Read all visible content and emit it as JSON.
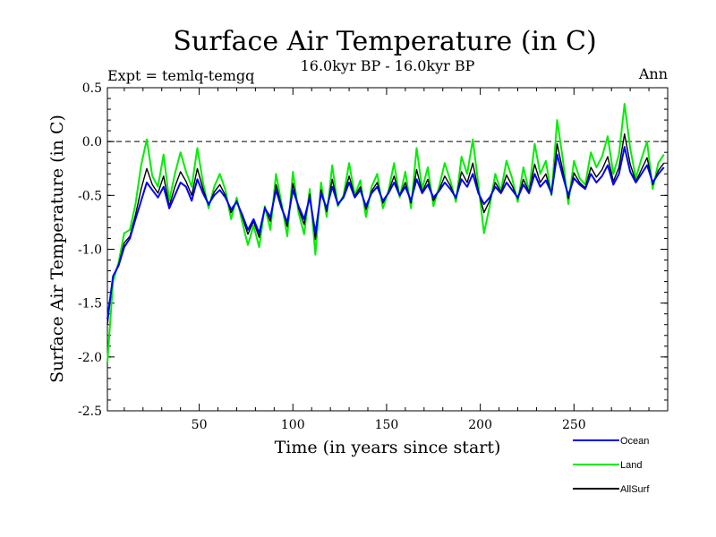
{
  "chart_data": {
    "type": "line",
    "title": "Surface Air Temperature (in C)",
    "subtitle": "16.0kyr BP - 16.0kyr BP",
    "experiment_label": "Expt = temlq-temgq",
    "season_label": "Ann",
    "xlabel": "Time (in years since start)",
    "ylabel": "Surface Air Temperature (in C)",
    "xlim": [
      1,
      300
    ],
    "ylim": [
      -2.5,
      0.5
    ],
    "x_ticks": [
      50,
      100,
      150,
      200,
      250
    ],
    "x_tick_labels": [
      "50",
      "100",
      "150",
      "200",
      "250"
    ],
    "y_ticks": [
      -2.5,
      -2.0,
      -1.5,
      -1.0,
      -0.5,
      0.0,
      0.5
    ],
    "y_tick_labels": [
      "-2.5",
      "-2.0",
      "-1.5",
      "-1.0",
      "-0.5",
      "0.0",
      "0.5"
    ],
    "reference_line": 0.0,
    "grid": false,
    "legend_position": "bottom-right, outside plot",
    "x": [
      1,
      4,
      7,
      10,
      13,
      16,
      19,
      22,
      25,
      28,
      31,
      34,
      37,
      40,
      43,
      46,
      49,
      52,
      55,
      58,
      61,
      64,
      67,
      70,
      73,
      76,
      79,
      82,
      85,
      88,
      91,
      94,
      97,
      100,
      103,
      106,
      109,
      112,
      115,
      118,
      121,
      124,
      127,
      130,
      133,
      136,
      139,
      142,
      145,
      148,
      151,
      154,
      157,
      160,
      163,
      166,
      169,
      172,
      175,
      178,
      181,
      184,
      187,
      190,
      193,
      196,
      199,
      202,
      205,
      208,
      211,
      214,
      217,
      220,
      223,
      226,
      229,
      232,
      235,
      238,
      241,
      244,
      247,
      250,
      253,
      256,
      259,
      262,
      265,
      268,
      271,
      274,
      277,
      280,
      283,
      286,
      289,
      292,
      295,
      298
    ],
    "series": [
      {
        "name": "Ocean",
        "color": "#0000ff",
        "values": [
          -1.65,
          -1.25,
          -1.15,
          -0.98,
          -0.9,
          -0.72,
          -0.55,
          -0.38,
          -0.45,
          -0.52,
          -0.42,
          -0.62,
          -0.5,
          -0.38,
          -0.42,
          -0.55,
          -0.35,
          -0.48,
          -0.58,
          -0.5,
          -0.45,
          -0.52,
          -0.63,
          -0.56,
          -0.68,
          -0.82,
          -0.72,
          -0.85,
          -0.62,
          -0.7,
          -0.45,
          -0.62,
          -0.75,
          -0.45,
          -0.6,
          -0.72,
          -0.52,
          -0.85,
          -0.48,
          -0.62,
          -0.42,
          -0.58,
          -0.52,
          -0.38,
          -0.52,
          -0.45,
          -0.6,
          -0.48,
          -0.42,
          -0.55,
          -0.48,
          -0.38,
          -0.5,
          -0.42,
          -0.55,
          -0.35,
          -0.48,
          -0.4,
          -0.52,
          -0.46,
          -0.38,
          -0.44,
          -0.52,
          -0.35,
          -0.42,
          -0.3,
          -0.48,
          -0.58,
          -0.52,
          -0.42,
          -0.48,
          -0.38,
          -0.45,
          -0.52,
          -0.4,
          -0.48,
          -0.3,
          -0.42,
          -0.36,
          -0.48,
          -0.12,
          -0.32,
          -0.5,
          -0.34,
          -0.4,
          -0.44,
          -0.3,
          -0.38,
          -0.32,
          -0.22,
          -0.4,
          -0.3,
          -0.05,
          -0.28,
          -0.38,
          -0.3,
          -0.22,
          -0.38,
          -0.3,
          -0.24
        ]
      },
      {
        "name": "Land",
        "color": "#00ee00",
        "values": [
          -2.05,
          -1.3,
          -1.12,
          -0.85,
          -0.82,
          -0.58,
          -0.22,
          0.02,
          -0.32,
          -0.42,
          -0.12,
          -0.55,
          -0.3,
          -0.1,
          -0.28,
          -0.42,
          -0.06,
          -0.38,
          -0.62,
          -0.42,
          -0.3,
          -0.45,
          -0.72,
          -0.52,
          -0.75,
          -0.96,
          -0.78,
          -0.98,
          -0.6,
          -0.82,
          -0.3,
          -0.58,
          -0.88,
          -0.28,
          -0.66,
          -0.86,
          -0.44,
          -1.05,
          -0.38,
          -0.7,
          -0.22,
          -0.6,
          -0.5,
          -0.2,
          -0.5,
          -0.36,
          -0.7,
          -0.42,
          -0.3,
          -0.62,
          -0.46,
          -0.2,
          -0.52,
          -0.28,
          -0.62,
          -0.06,
          -0.44,
          -0.24,
          -0.6,
          -0.42,
          -0.2,
          -0.36,
          -0.56,
          -0.14,
          -0.3,
          0.02,
          -0.4,
          -0.85,
          -0.6,
          -0.3,
          -0.46,
          -0.18,
          -0.34,
          -0.56,
          -0.24,
          -0.46,
          -0.02,
          -0.3,
          -0.18,
          -0.5,
          0.2,
          -0.16,
          -0.58,
          -0.18,
          -0.34,
          -0.4,
          -0.1,
          -0.24,
          -0.14,
          0.05,
          -0.3,
          -0.12,
          0.35,
          -0.06,
          -0.34,
          -0.16,
          0.0,
          -0.44,
          -0.2,
          -0.12
        ]
      },
      {
        "name": "AllSurf",
        "color": "#000000",
        "values": [
          -1.7,
          -1.25,
          -1.14,
          -0.94,
          -0.88,
          -0.68,
          -0.44,
          -0.25,
          -0.4,
          -0.48,
          -0.32,
          -0.6,
          -0.42,
          -0.28,
          -0.37,
          -0.5,
          -0.25,
          -0.44,
          -0.59,
          -0.47,
          -0.4,
          -0.5,
          -0.66,
          -0.55,
          -0.7,
          -0.86,
          -0.74,
          -0.89,
          -0.61,
          -0.74,
          -0.4,
          -0.6,
          -0.79,
          -0.39,
          -0.62,
          -0.77,
          -0.49,
          -0.91,
          -0.45,
          -0.65,
          -0.35,
          -0.59,
          -0.51,
          -0.32,
          -0.51,
          -0.42,
          -0.63,
          -0.46,
          -0.38,
          -0.57,
          -0.47,
          -0.32,
          -0.5,
          -0.38,
          -0.57,
          -0.26,
          -0.47,
          -0.35,
          -0.55,
          -0.45,
          -0.32,
          -0.41,
          -0.53,
          -0.28,
          -0.38,
          -0.2,
          -0.46,
          -0.66,
          -0.55,
          -0.38,
          -0.47,
          -0.31,
          -0.41,
          -0.53,
          -0.35,
          -0.47,
          -0.21,
          -0.38,
          -0.3,
          -0.49,
          -0.02,
          -0.27,
          -0.53,
          -0.29,
          -0.38,
          -0.43,
          -0.24,
          -0.33,
          -0.26,
          -0.14,
          -0.37,
          -0.24,
          0.07,
          -0.21,
          -0.37,
          -0.26,
          -0.15,
          -0.4,
          -0.27,
          -0.2
        ]
      }
    ]
  }
}
